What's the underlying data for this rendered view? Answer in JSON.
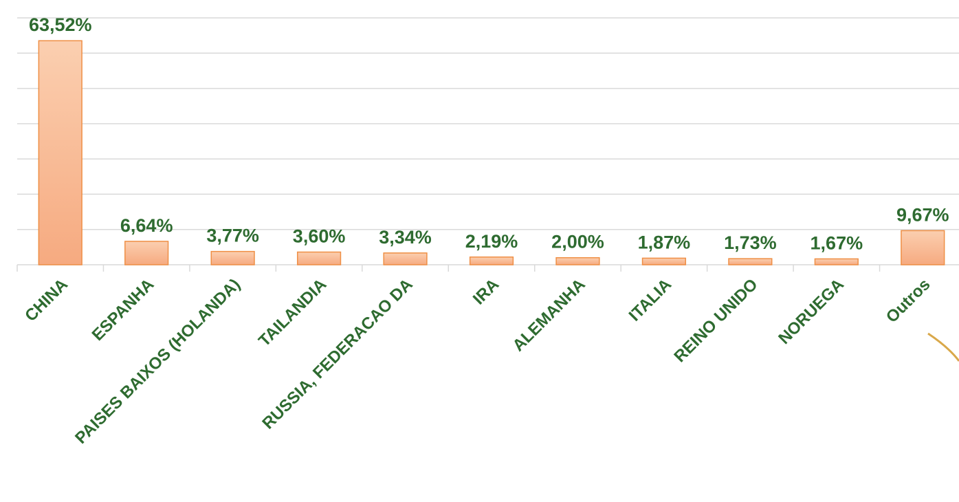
{
  "chart_data": {
    "type": "bar",
    "categories": [
      "CHINA",
      "ESPANHA",
      "PAISES BAIXOS (HOLANDA)",
      "TAILANDIA",
      "RUSSIA, FEDERACAO DA",
      "IRA",
      "ALEMANHA",
      "ITALIA",
      "REINO UNIDO",
      "NORUEGA",
      "Outros"
    ],
    "values": [
      63.52,
      6.64,
      3.77,
      3.6,
      3.34,
      2.19,
      2.0,
      1.87,
      1.73,
      1.67,
      9.67
    ],
    "value_labels": [
      "63,52%",
      "6,64%",
      "3,77%",
      "3,60%",
      "3,34%",
      "2,19%",
      "2,00%",
      "1,87%",
      "1,73%",
      "1,67%",
      "9,67%"
    ],
    "color": "#f7b38c",
    "ylim": [
      0,
      70
    ],
    "yticks": [
      0,
      10,
      20,
      30,
      40,
      50,
      60,
      70
    ],
    "grid": true
  }
}
